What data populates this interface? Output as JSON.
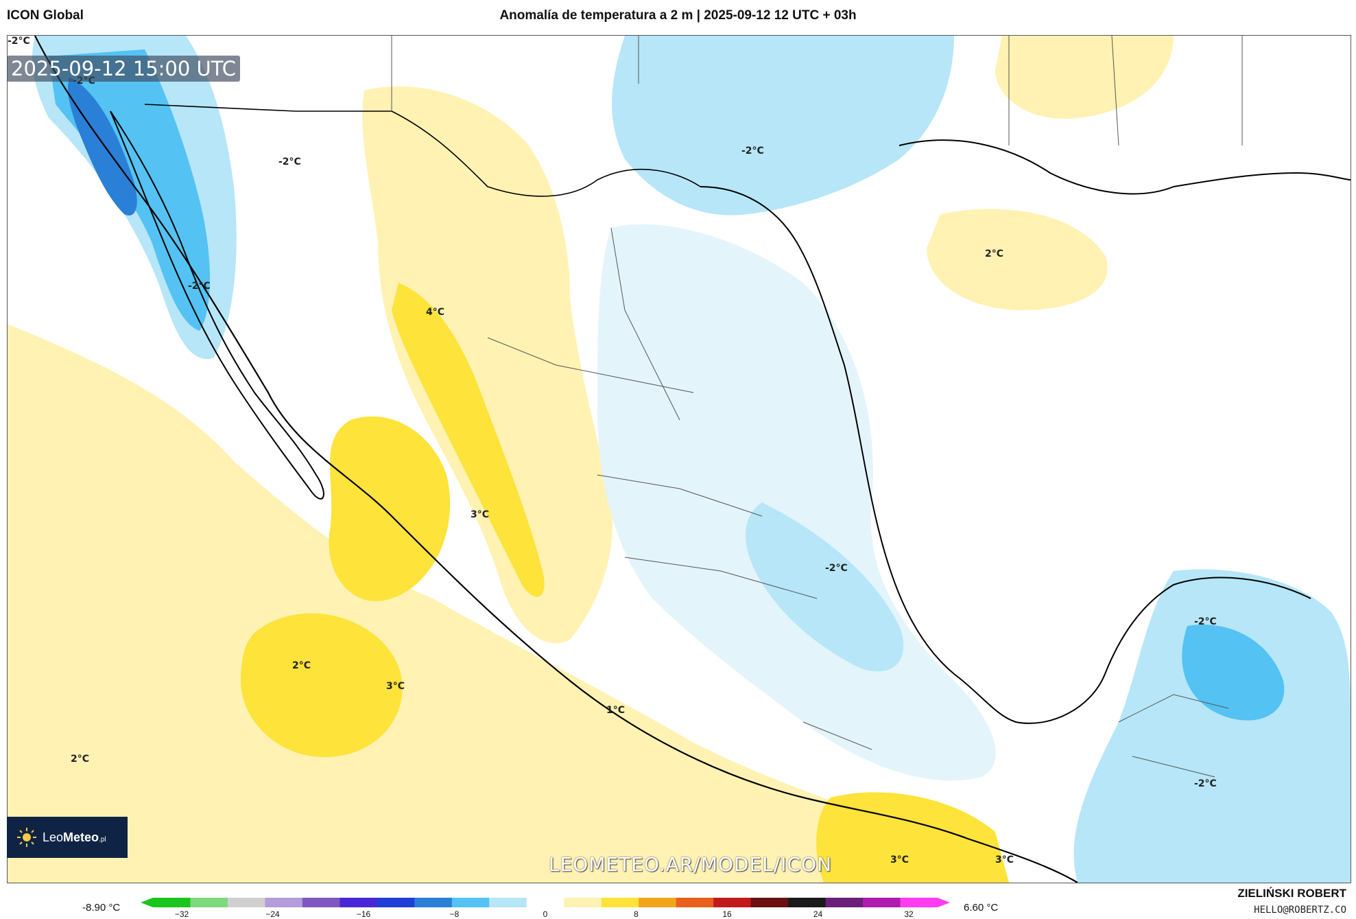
{
  "header": {
    "model_name": "ICON Global",
    "title": "Anomalía de temperatura a 2 m | 2025-09-12 12 UTC + 03h"
  },
  "map": {
    "valid_time": "2025-09-12 15:00 UTC",
    "watermark": "LEOMETEO.AR/MODEL/ICON",
    "isoline_labels": [
      "-2°C",
      "-2°C",
      "-2°C",
      "-2°C",
      "4°C",
      "2°C",
      "3°C",
      "-2°C",
      "-2°C",
      "-2°C",
      "-2°C",
      "2°C",
      "3°C",
      "1°C",
      "2°C",
      "3°C",
      "3°C"
    ],
    "colors": {
      "cold_strong": "#2a7fd6",
      "cold_mid": "#54c2f2",
      "cold_light": "#b6e6f8",
      "cold_faint": "#e4f4fb",
      "neutral": "#ffffff",
      "warm_faint": "#fff2b3",
      "warm_mid": "#fde33a",
      "warm_strong": "#f2a51b",
      "land_border": "#000000",
      "state_border": "#555555"
    }
  },
  "logo": {
    "brand_light": "Leo",
    "brand_bold": "Meteo",
    "suffix": ".pl"
  },
  "legend": {
    "min_label": "-8.90 °C",
    "max_label": "6.60 °C",
    "ticks": [
      "−32",
      "−24",
      "−16",
      "−8",
      "0",
      "8",
      "16",
      "24",
      "32"
    ],
    "colors": [
      "#1cc51c",
      "#7ed87e",
      "#cfcfcf",
      "#b39ddb",
      "#7e57c2",
      "#4a27d6",
      "#1f3fd6",
      "#2a7fd6",
      "#54c2f2",
      "#b6e6f8",
      "#ffffff",
      "#fff2b3",
      "#fde33a",
      "#f2a51b",
      "#e8601c",
      "#c21a1a",
      "#6b1010",
      "#1a1a1a",
      "#6a1f7a",
      "#b01bb0",
      "#ff3cf0"
    ]
  },
  "credits": {
    "author": "ZIELIŃSKI ROBERT",
    "email": "HELLO@ROBERTZ.CO"
  }
}
